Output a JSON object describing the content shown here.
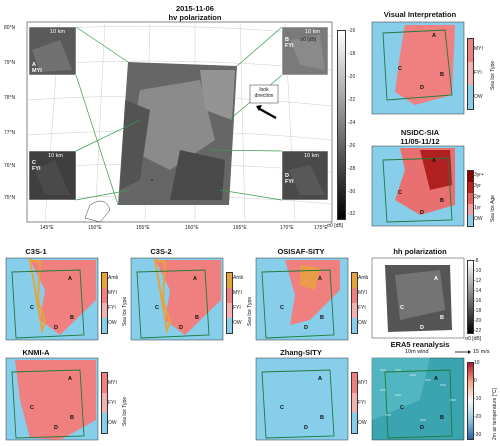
{
  "main": {
    "date": "2015-11-06",
    "subtitle": "hv polarization",
    "lat_ticks": [
      "80°N",
      "79°N",
      "78°N",
      "77°N",
      "76°N",
      "75°N"
    ],
    "lon_ticks": [
      "145°E",
      "150°E",
      "155°E",
      "160°E",
      "165°E",
      "170°E",
      "175°E"
    ],
    "colorbar_ticks": [
      "-16",
      "-18",
      "-20",
      "-22",
      "-24",
      "-26",
      "-28",
      "-30",
      "-32"
    ],
    "colorbar_label": "σ0 [dB]",
    "colorbar_bottom_label": "σ0 [dB]",
    "look_direction_label": "look direction",
    "insets": [
      {
        "letter": "A",
        "type": "MYI",
        "scale": "10 km"
      },
      {
        "letter": "B",
        "type": "FYI",
        "scale": "10 km"
      },
      {
        "letter": "C",
        "type": "FYI",
        "scale": "10 km"
      },
      {
        "letter": "D",
        "type": "FYI",
        "scale": "10 km"
      }
    ]
  },
  "panels": {
    "visual": {
      "title": "Visual Interpretation",
      "cbar_label": "Sea Ice Type",
      "ticks": [
        "MYI",
        "FYI",
        "OW"
      ]
    },
    "nsidc": {
      "title1": "NSIDC-SIA",
      "title2": "11/05-11/12",
      "cbar_label": "Sea Ice Age",
      "ticks": [
        "3yr+",
        "3yr",
        "2yr",
        "1yr",
        "OW"
      ]
    },
    "c3s1": {
      "title": "C3S-1",
      "cbar_label": "Sea Ice Type",
      "ticks": [
        "Amb",
        "MYI",
        "FYI",
        "OW"
      ]
    },
    "c3s2": {
      "title": "C3S-2",
      "cbar_label": "Sea Ice Type",
      "ticks": [
        "Amb",
        "MYI",
        "FYI",
        "OW"
      ]
    },
    "osisaf": {
      "title": "OSISAF-SITY",
      "cbar_label": "Sea Ice Type",
      "ticks": [
        "Amb",
        "MYI",
        "FYI",
        "OW"
      ]
    },
    "hh": {
      "title": "hh polarization",
      "ticks": [
        "-8",
        "-10",
        "-12",
        "-14",
        "-16",
        "-18",
        "-20",
        "-22"
      ],
      "cbar_label": "σ0 [dB]"
    },
    "knmi": {
      "title": "KNMI-A",
      "cbar_label": "Sea Ice Type",
      "ticks": [
        "MYI",
        "FYI",
        "OW"
      ]
    },
    "zhang": {
      "title": "Zhang-SITY",
      "cbar_label": "Sea Ice Type",
      "ticks": [
        "MYI",
        "FYI",
        "OW"
      ]
    },
    "era5": {
      "title": "ERA5 reanalysis",
      "wind_label": "10m wind",
      "wind_scale": "15 m/s",
      "ticks": [
        "10",
        "0",
        "-10",
        "-20",
        "-30"
      ],
      "cbar_label": "2m air temperature [°C]"
    }
  },
  "region_letters": [
    "A",
    "B",
    "C",
    "D"
  ],
  "colors": {
    "myi": "#f08080",
    "fyi": "#f3b1b1",
    "ow": "#87ceeb",
    "amb": "#e8a33a",
    "frame": "#1f7a3a"
  }
}
